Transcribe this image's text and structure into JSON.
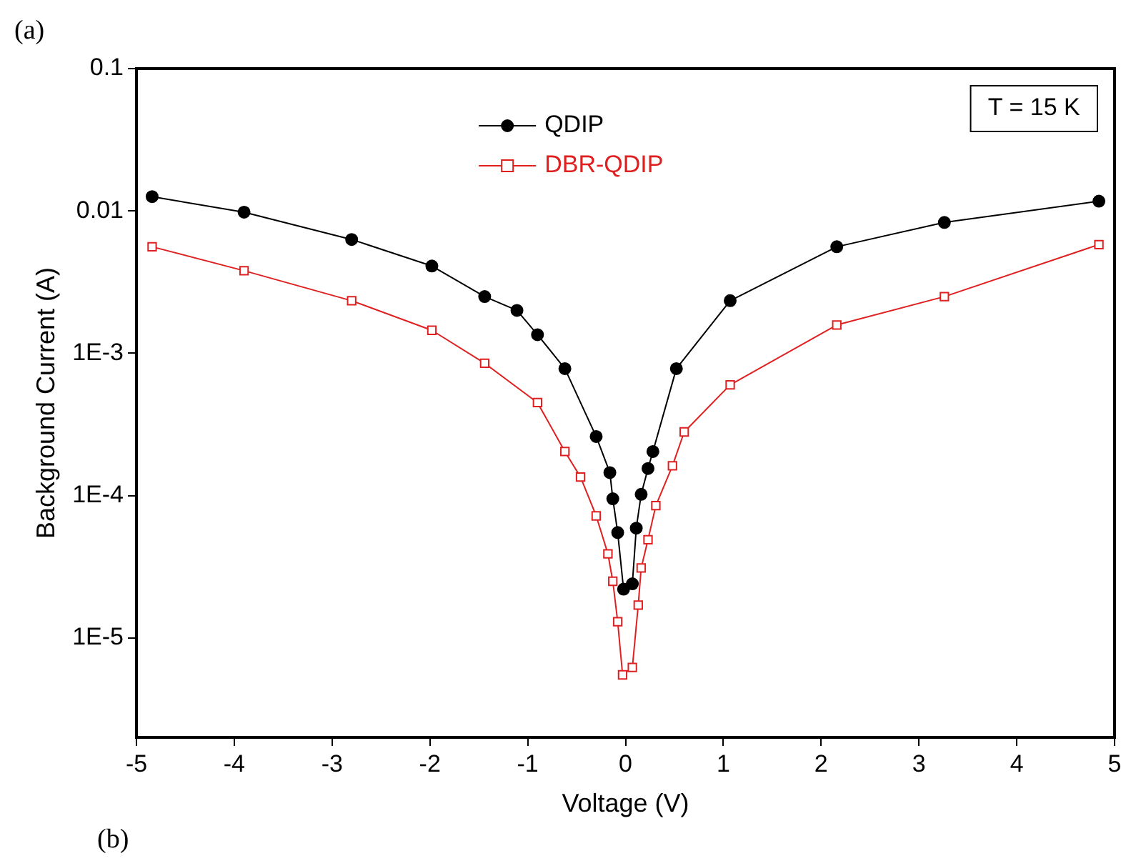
{
  "chart_data": {
    "type": "line",
    "xlabel": "Voltage (V)",
    "ylabel": "Background Current (A)",
    "annotations": [
      "(a)",
      "T = 15 K",
      "(b)"
    ],
    "xlim": [
      -5,
      5
    ],
    "xticks": [
      -5,
      -4,
      -3,
      -2,
      -1,
      0,
      1,
      2,
      3,
      4,
      5
    ],
    "ylim": [
      2e-06,
      0.1
    ],
    "yticks": [
      0.1,
      0.01,
      {
        "value": 0.001,
        "label": "1E-3"
      },
      {
        "value": 0.0001,
        "label": "1E-4"
      },
      {
        "value": 1e-05,
        "label": "1E-5"
      }
    ],
    "log": "y",
    "grid": false,
    "legend": "top",
    "line_style": "solid",
    "series": [
      {
        "name": "QDIP",
        "color": "#000000",
        "marker": "circle",
        "x": [
          -4.84,
          -3.9,
          -2.8,
          -1.98,
          -1.44,
          -1.11,
          -0.9,
          -0.62,
          -0.3,
          -0.16,
          -0.13,
          -0.08,
          -0.02,
          0.07,
          0.11,
          0.16,
          0.23,
          0.28,
          0.52,
          1.07,
          2.16,
          3.26,
          4.84
        ],
        "values": [
          0.0126,
          0.0098,
          0.0063,
          0.0041,
          0.0025,
          0.002,
          0.00135,
          0.00078,
          0.00026,
          0.000145,
          9.5e-05,
          5.5e-05,
          2.2e-05,
          2.4e-05,
          5.9e-05,
          0.000102,
          0.000155,
          0.000204,
          0.00078,
          0.00234,
          0.0056,
          0.0083,
          0.0117
        ]
      },
      {
        "name": "DBR-QDIP",
        "color": "#e02020",
        "marker": "square",
        "x": [
          -4.84,
          -3.9,
          -2.8,
          -1.98,
          -1.44,
          -0.9,
          -0.62,
          -0.46,
          -0.3,
          -0.18,
          -0.13,
          -0.08,
          -0.03,
          0.07,
          0.13,
          0.16,
          0.23,
          0.31,
          0.48,
          0.6,
          1.07,
          2.16,
          3.26,
          4.84
        ],
        "values": [
          0.0056,
          0.0038,
          0.00234,
          0.00145,
          0.00085,
          0.00045,
          0.000204,
          0.000135,
          7.2e-05,
          3.9e-05,
          2.5e-05,
          1.3e-05,
          5.5e-06,
          6.2e-06,
          1.7e-05,
          3.1e-05,
          4.9e-05,
          8.5e-05,
          0.000162,
          0.00028,
          0.0006,
          0.00158,
          0.0025,
          0.0058
        ]
      }
    ]
  }
}
